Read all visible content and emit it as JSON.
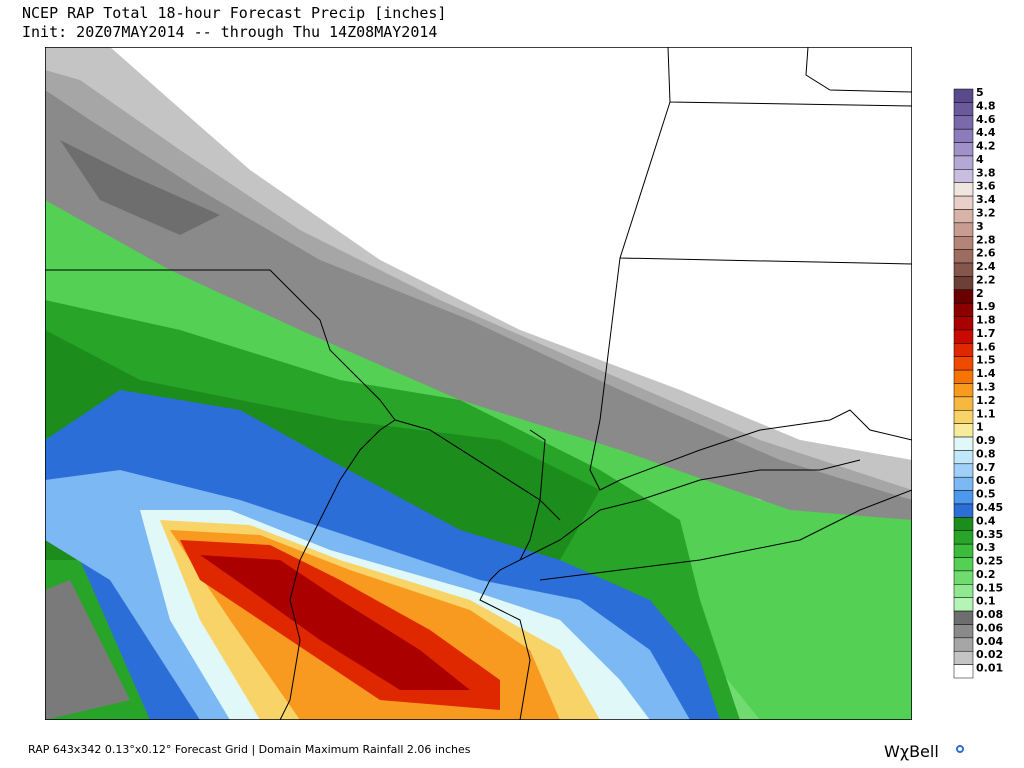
{
  "header": {
    "title": "NCEP RAP Total 18-hour Forecast Precip [inches]",
    "subtitle": "Init: 20Z07MAY2014 -- through Thu 14Z08MAY2014"
  },
  "legend": {
    "levels": [
      {
        "value": 5,
        "color": "#5a4a8c"
      },
      {
        "value": 4.8,
        "color": "#6a5a9c"
      },
      {
        "value": 4.6,
        "color": "#7a6aac"
      },
      {
        "value": 4.4,
        "color": "#8c7cbc"
      },
      {
        "value": 4.2,
        "color": "#a092c8"
      },
      {
        "value": 4,
        "color": "#b4a8d4"
      },
      {
        "value": 3.8,
        "color": "#c8bedf"
      },
      {
        "value": 3.6,
        "color": "#f0e6e0"
      },
      {
        "value": 3.4,
        "color": "#e8d0c8"
      },
      {
        "value": 3.2,
        "color": "#d8b4a8"
      },
      {
        "value": 3,
        "color": "#c89c90"
      },
      {
        "value": 2.8,
        "color": "#b48478"
      },
      {
        "value": 2.6,
        "color": "#9c6c60"
      },
      {
        "value": 2.4,
        "color": "#84564c"
      },
      {
        "value": 2.2,
        "color": "#6c4038"
      },
      {
        "value": 2,
        "color": "#6a0000"
      },
      {
        "value": 1.9,
        "color": "#8c0000"
      },
      {
        "value": 1.8,
        "color": "#aa0000"
      },
      {
        "value": 1.7,
        "color": "#c80a00"
      },
      {
        "value": 1.6,
        "color": "#e02800"
      },
      {
        "value": 1.5,
        "color": "#f04a00"
      },
      {
        "value": 1.4,
        "color": "#f87400"
      },
      {
        "value": 1.3,
        "color": "#f89a20"
      },
      {
        "value": 1.2,
        "color": "#f8b840"
      },
      {
        "value": 1.1,
        "color": "#f8d468"
      },
      {
        "value": 1,
        "color": "#f8ec9c"
      },
      {
        "value": 0.9,
        "color": "#e0f8f8"
      },
      {
        "value": 0.8,
        "color": "#c0e8f8"
      },
      {
        "value": 0.7,
        "color": "#a0d0f8"
      },
      {
        "value": 0.6,
        "color": "#7cb8f4"
      },
      {
        "value": 0.5,
        "color": "#4c98ec"
      },
      {
        "value": 0.45,
        "color": "#2c6ed8"
      },
      {
        "value": 0.4,
        "color": "#1c8c1c"
      },
      {
        "value": 0.35,
        "color": "#28a428"
      },
      {
        "value": 0.3,
        "color": "#3cbc3c"
      },
      {
        "value": 0.25,
        "color": "#54d054"
      },
      {
        "value": 0.2,
        "color": "#70dc70"
      },
      {
        "value": 0.15,
        "color": "#90e890"
      },
      {
        "value": 0.1,
        "color": "#b4f4b4"
      },
      {
        "value": 0.08,
        "color": "#6e6e6e"
      },
      {
        "value": 0.06,
        "color": "#8a8a8a"
      },
      {
        "value": 0.04,
        "color": "#a6a6a6"
      },
      {
        "value": 0.02,
        "color": "#c4c4c4"
      },
      {
        "value": 0.01,
        "color": "#ffffff"
      }
    ]
  },
  "footer": {
    "text": "RAP 643x342 0.13°x0.12° Forecast Grid  |  Domain Maximum Rainfall  2.06 inches",
    "brand": "WχBell"
  }
}
